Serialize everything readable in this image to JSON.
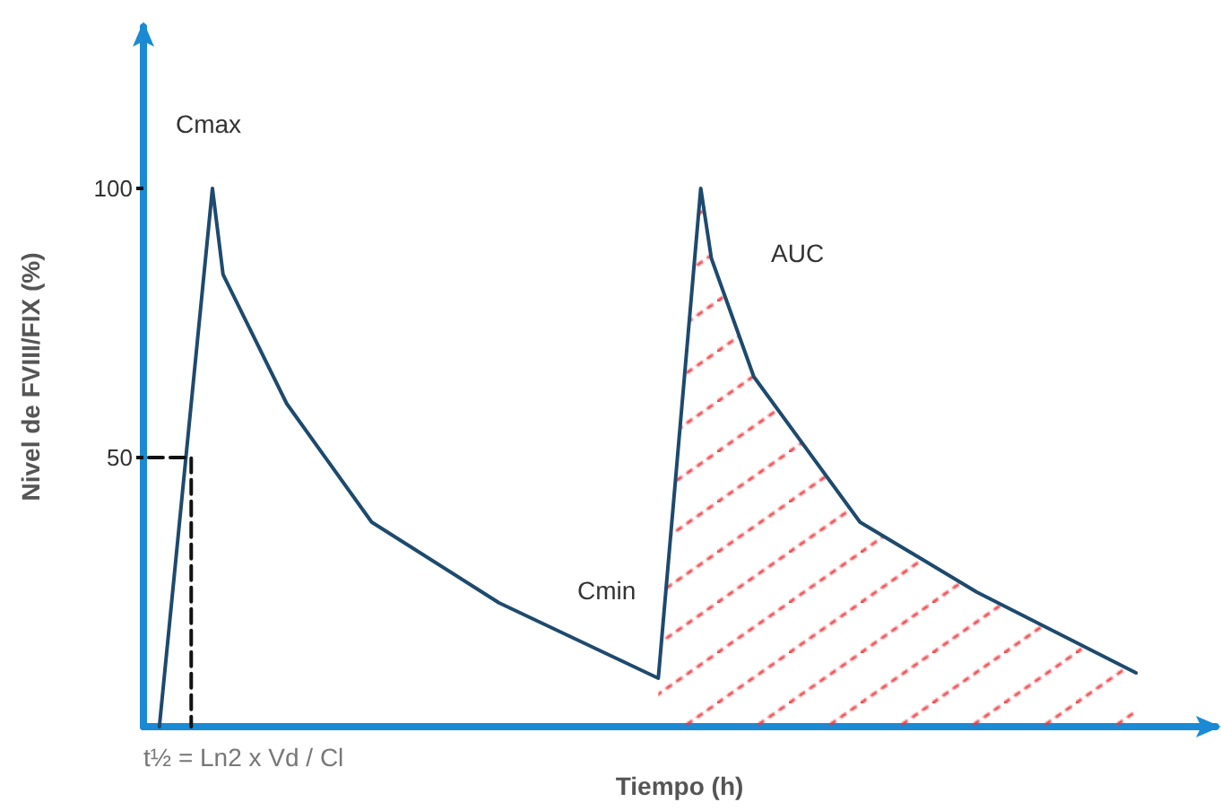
{
  "chart_data": {
    "type": "line",
    "ylabel": "Nivel de FVIII/FIX (%)",
    "xlabel": "Tiempo (h)",
    "categories": [
      null,
      null,
      null,
      null,
      null,
      null,
      null,
      null,
      null,
      null,
      null,
      null,
      null,
      null,
      null,
      null,
      null,
      null,
      null,
      null,
      null,
      null,
      null,
      null,
      null,
      null,
      null,
      null,
      null,
      null,
      null,
      null,
      null,
      null,
      null,
      null,
      null,
      null,
      null,
      null,
      null,
      null,
      null,
      null,
      null,
      null,
      null,
      null,
      null,
      null,
      null,
      null,
      null,
      null,
      null,
      null,
      null,
      null,
      null,
      null,
      null,
      null,
      null,
      null,
      null,
      null,
      null,
      null,
      null,
      null,
      null,
      null,
      null,
      null,
      null,
      null,
      null,
      null,
      null,
      null,
      null,
      null,
      null,
      null,
      null,
      null,
      null,
      null,
      null,
      null,
      null,
      null,
      null,
      null,
      null,
      null,
      null,
      null,
      null,
      null,
      null
    ],
    "ylim": [
      0,
      130
    ],
    "yticks": [
      50,
      100
    ],
    "marker": "none",
    "series": [
      {
        "color": "#1d4a6e",
        "values": [
          null,
          0,
          null,
          null,
          null,
          null,
          100,
          84,
          null,
          null,
          null,
          null,
          null,
          60,
          null,
          null,
          null,
          null,
          null,
          null,
          null,
          38,
          null,
          null,
          null,
          null,
          null,
          null,
          null,
          null,
          null,
          null,
          null,
          23,
          null,
          null,
          null,
          null,
          null,
          null,
          null,
          null,
          null,
          null,
          null,
          null,
          null,
          null,
          9,
          null,
          null,
          null,
          100,
          87,
          null,
          null,
          null,
          65,
          null,
          null,
          null,
          null,
          null,
          null,
          null,
          null,
          null,
          38,
          null,
          null,
          null,
          null,
          null,
          null,
          null,
          null,
          null,
          null,
          25,
          null,
          null,
          null,
          null,
          null,
          null,
          null,
          null,
          null,
          null,
          null,
          null,
          null,
          null,
          10,
          null,
          null,
          null,
          null,
          null,
          null,
          null
        ]
      },
      {
        "type": "area",
        "color": "#e8363c",
        "values": [
          null,
          null,
          null,
          null,
          null,
          null,
          null,
          null,
          null,
          null,
          null,
          null,
          null,
          null,
          null,
          null,
          null,
          null,
          null,
          null,
          null,
          null,
          null,
          null,
          null,
          null,
          null,
          null,
          null,
          null,
          null,
          null,
          null,
          null,
          null,
          null,
          null,
          null,
          null,
          null,
          null,
          null,
          null,
          null,
          null,
          null,
          null,
          null,
          9,
          null,
          null,
          null,
          100,
          87,
          null,
          null,
          null,
          65,
          null,
          null,
          null,
          null,
          null,
          null,
          null,
          null,
          null,
          38,
          null,
          null,
          null,
          null,
          null,
          null,
          null,
          null,
          null,
          null,
          25,
          null,
          null,
          null,
          null,
          null,
          null,
          null,
          null,
          null,
          null,
          null,
          null,
          null,
          null,
          10,
          null,
          null,
          null,
          null,
          null,
          null,
          null
        ]
      },
      {
        "type": "step",
        "color": "#111111",
        "line_style": "dashed",
        "values": [
          50,
          null,
          null,
          null,
          0,
          null,
          null,
          null,
          null,
          null,
          null,
          null,
          null,
          null,
          null,
          null,
          null,
          null,
          null,
          null,
          null,
          null,
          null,
          null,
          null,
          null,
          null,
          null,
          null,
          null,
          null,
          null,
          null,
          null,
          null,
          null,
          null,
          null,
          null,
          null,
          null,
          null,
          null,
          null,
          null,
          null,
          null,
          null,
          null,
          null,
          null,
          null,
          null,
          null,
          null,
          null,
          null,
          null,
          null,
          null,
          null,
          null,
          null,
          null,
          null,
          null,
          null,
          null,
          null,
          null,
          null,
          null,
          null,
          null,
          null,
          null,
          null,
          null,
          null,
          null,
          null,
          null,
          null,
          null,
          null,
          null,
          null,
          null,
          null,
          null,
          null,
          null,
          null,
          null,
          null,
          null,
          null,
          null,
          null,
          null,
          null
        ]
      }
    ],
    "annotations": [
      "Cmax",
      "Cmin",
      "AUC",
      "t½ = Ln2 x Vd / Cl"
    ]
  }
}
